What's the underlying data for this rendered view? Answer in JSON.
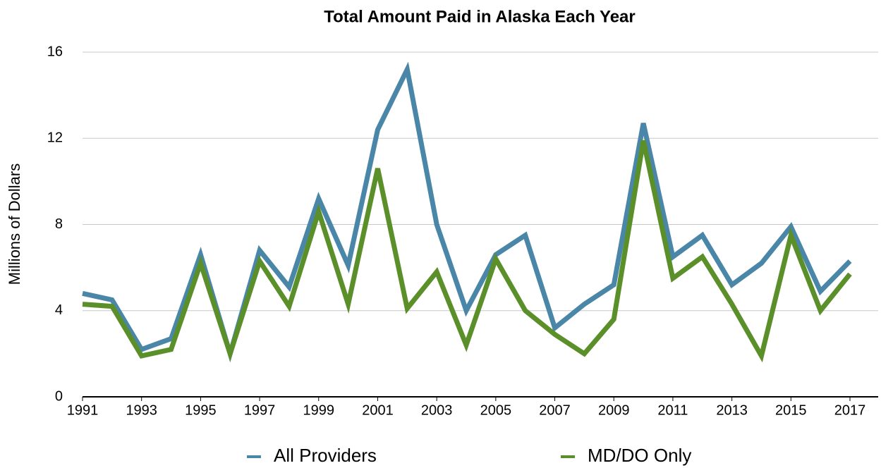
{
  "chart_data": {
    "type": "line",
    "title": "Total Amount Paid in Alaska Each Year",
    "y_label": "Millions of Dollars",
    "x": [
      1991,
      1992,
      1993,
      1994,
      1995,
      1996,
      1997,
      1998,
      1999,
      2000,
      2001,
      2002,
      2003,
      2004,
      2005,
      2006,
      2007,
      2008,
      2009,
      2010,
      2011,
      2012,
      2013,
      2014,
      2015,
      2016,
      2017
    ],
    "series": [
      {
        "name": "All Providers",
        "color": "#4a86a8",
        "values": [
          4.8,
          4.5,
          2.2,
          2.7,
          6.6,
          2.0,
          6.8,
          5.1,
          9.2,
          6.1,
          12.4,
          15.2,
          8.0,
          4.0,
          6.6,
          7.5,
          3.2,
          4.3,
          5.2,
          12.7,
          6.5,
          7.5,
          5.2,
          6.2,
          7.9,
          4.9,
          6.3
        ]
      },
      {
        "name": "MD/DO Only",
        "color": "#5a8f29",
        "values": [
          4.3,
          4.2,
          1.9,
          2.2,
          6.2,
          2.0,
          6.3,
          4.2,
          8.6,
          4.3,
          10.6,
          4.1,
          5.8,
          2.4,
          6.4,
          4.0,
          2.9,
          2.0,
          3.6,
          11.9,
          5.5,
          6.5,
          4.3,
          1.9,
          7.5,
          4.0,
          5.7
        ]
      }
    ],
    "xlim": [
      1991,
      2017
    ],
    "xticks": [
      1991,
      1993,
      1995,
      1997,
      1999,
      2001,
      2003,
      2005,
      2007,
      2009,
      2011,
      2013,
      2015,
      2017
    ],
    "ylim": [
      0,
      16
    ],
    "yticks": [
      0,
      4,
      8,
      12,
      16
    ],
    "grid": true,
    "legend": "bottom"
  }
}
